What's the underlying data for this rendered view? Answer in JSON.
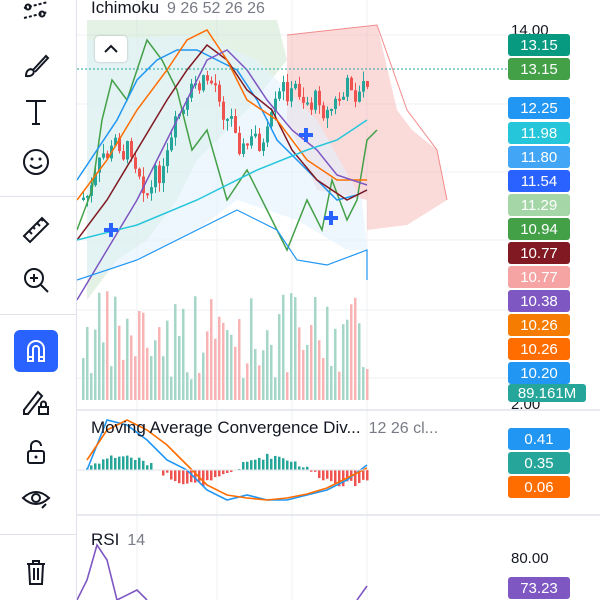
{
  "indicators": {
    "ichimoku": {
      "name": "Ichimoku",
      "params": "9 26 52 26 26"
    },
    "macd": {
      "name": "Moving Average Convergence Div...",
      "params": "12 26 cl..."
    },
    "rsi": {
      "name": "RSI",
      "params": "14"
    }
  },
  "price_scale": {
    "top_label": "14.00",
    "macd_top_label": "2.00",
    "rsi_label": "80.00"
  },
  "price_tags": [
    {
      "value": "13.15",
      "color": "#089981"
    },
    {
      "value": "13.15",
      "color": "#43a047"
    },
    {
      "value": "12.25",
      "color": "#2196f3"
    },
    {
      "value": "11.98",
      "color": "#26c6da"
    },
    {
      "value": "11.80",
      "color": "#42a5f5"
    },
    {
      "value": "11.54",
      "color": "#2962ff"
    },
    {
      "value": "11.29",
      "color": "#a5d6a7"
    },
    {
      "value": "10.94",
      "color": "#43a047"
    },
    {
      "value": "10.77",
      "color": "#801922"
    },
    {
      "value": "10.77",
      "color": "#f5a3a3"
    },
    {
      "value": "10.38",
      "color": "#7e57c2"
    },
    {
      "value": "10.26",
      "color": "#f57c00"
    },
    {
      "value": "10.26",
      "color": "#ff6d00"
    },
    {
      "value": "10.20",
      "color": "#2196f3"
    },
    {
      "value": "89.161M",
      "color": "#26a69a"
    }
  ],
  "macd_tags": [
    {
      "value": "0.41",
      "color": "#2196f3"
    },
    {
      "value": "0.35",
      "color": "#26a69a"
    },
    {
      "value": "0.06",
      "color": "#ff6d00"
    }
  ],
  "rsi_tags": [
    {
      "value": "73.23",
      "color": "#7e57c2"
    }
  ],
  "tools": [
    "trend-line-icon",
    "brush-icon",
    "text-icon",
    "emoji-icon",
    "ruler-icon",
    "zoom-in-icon",
    "magnet-icon",
    "lock-pencil-icon",
    "unlock-icon",
    "eye-icon",
    "trash-icon"
  ],
  "colors": {
    "accent": "#2962ff",
    "up": "#26a69a",
    "down": "#ef5350"
  }
}
